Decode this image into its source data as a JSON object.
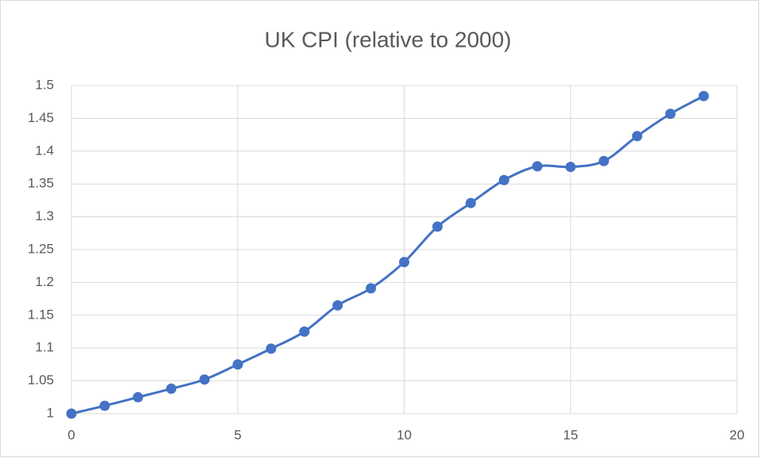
{
  "chart_data": {
    "type": "scatter",
    "title": "UK CPI (relative to 2000)",
    "x": [
      0,
      1,
      2,
      3,
      4,
      5,
      6,
      7,
      8,
      9,
      10,
      11,
      12,
      13,
      14,
      15,
      16,
      17,
      18,
      19
    ],
    "series": [
      {
        "color": "#4472c4",
        "values": [
          1.0,
          1.012,
          1.025,
          1.038,
          1.052,
          1.075,
          1.099,
          1.125,
          1.165,
          1.191,
          1.231,
          1.285,
          1.321,
          1.356,
          1.377,
          1.376,
          1.385,
          1.423,
          1.457,
          1.484
        ]
      }
    ],
    "xlim": [
      0,
      20
    ],
    "xticks": [
      0,
      5,
      10,
      15,
      20
    ],
    "ylim": [
      1,
      1.5
    ],
    "yticks": [
      1,
      1.05,
      1.1,
      1.15,
      1.2,
      1.25,
      1.3,
      1.35,
      1.4,
      1.45,
      1.5
    ],
    "grid": true,
    "smooth": true
  }
}
